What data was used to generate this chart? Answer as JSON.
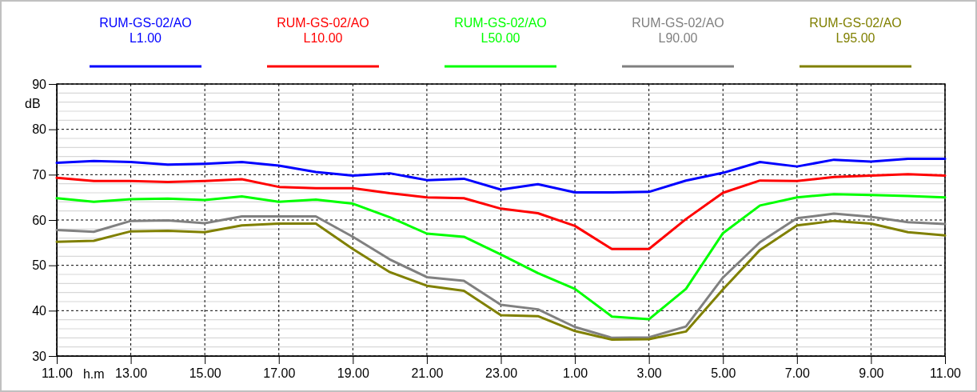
{
  "chart_data": {
    "type": "line",
    "xlabel": "h.m",
    "ylabel": "dB",
    "legend": "top",
    "grid": true,
    "line_style": "solid",
    "marker": "none",
    "categories": [
      "11.00",
      null,
      "13.00",
      null,
      "15.00",
      null,
      "17.00",
      null,
      "19.00",
      null,
      "21.00",
      null,
      "23.00",
      null,
      "1.00",
      null,
      "3.00",
      null,
      "5.00",
      null,
      "7.00",
      null,
      "9.00",
      null,
      "11.00"
    ],
    "ylim": [
      30,
      90
    ],
    "yticks": [
      30,
      {
        "value": 32,
        "label": null
      },
      {
        "value": 34,
        "label": null
      },
      {
        "value": 36,
        "label": null
      },
      {
        "value": 38,
        "label": null
      },
      40,
      {
        "value": 42,
        "label": null
      },
      {
        "value": 44,
        "label": null
      },
      {
        "value": 46,
        "label": null
      },
      {
        "value": 48,
        "label": null
      },
      50,
      {
        "value": 52,
        "label": null
      },
      {
        "value": 54,
        "label": null
      },
      {
        "value": 56,
        "label": null
      },
      {
        "value": 58,
        "label": null
      },
      60,
      {
        "value": 62,
        "label": null
      },
      {
        "value": 64,
        "label": null
      },
      {
        "value": 66,
        "label": null
      },
      {
        "value": 68,
        "label": null
      },
      70,
      {
        "value": 72,
        "label": null
      },
      {
        "value": 74,
        "label": null
      },
      {
        "value": 76,
        "label": null
      },
      {
        "value": 78,
        "label": null
      },
      80,
      {
        "value": 82,
        "label": null
      },
      {
        "value": 84,
        "label": null
      },
      {
        "value": 86,
        "label": null
      },
      {
        "value": 88,
        "label": null
      },
      90
    ],
    "series": [
      {
        "name": "RUM-GS-02/AO\nL1.00",
        "color": "#0000ff",
        "values": [
          72.6,
          73,
          72.8,
          72.2,
          72.4,
          72.8,
          72,
          70.6,
          69.8,
          70.3,
          68.8,
          69.1,
          66.7,
          67.9,
          66.1,
          66.1,
          66.2,
          68.7,
          70.4,
          72.8,
          71.8,
          73.3,
          72.9,
          73.5,
          73.5
        ]
      },
      {
        "name": "RUM-GS-02/AO\nL10.00",
        "color": "#ff0000",
        "values": [
          69.3,
          68.6,
          68.6,
          68.4,
          68.6,
          69,
          67.3,
          67,
          67,
          65.9,
          65,
          64.8,
          62.5,
          61.5,
          58.7,
          53.6,
          53.6,
          60.2,
          66,
          68.7,
          68.6,
          69.5,
          69.8,
          70.1,
          69.8
        ]
      },
      {
        "name": "RUM-GS-02/AO\nL50.00",
        "color": "#00ff00",
        "values": [
          64.8,
          64,
          64.6,
          64.7,
          64.4,
          65.2,
          64,
          64.5,
          63.6,
          60.6,
          57,
          56.3,
          52.4,
          48.3,
          44.8,
          38.7,
          38.1,
          44.8,
          57.1,
          63.2,
          65,
          65.7,
          65.5,
          65.3,
          65
        ]
      },
      {
        "name": "RUM-GS-02/AO\nL90.00",
        "color": "#808080",
        "values": [
          57.8,
          57.4,
          59.8,
          59.9,
          59.3,
          60.8,
          60.8,
          60.8,
          56.3,
          51.3,
          47.4,
          46.6,
          41.3,
          40.3,
          36.4,
          34,
          34.1,
          36.5,
          47.3,
          55.1,
          60.4,
          61.4,
          60.7,
          59.5,
          59.1
        ]
      },
      {
        "name": "RUM-GS-02/AO\nL95.00",
        "color": "#808000",
        "values": [
          55.2,
          55.4,
          57.5,
          57.6,
          57.3,
          58.8,
          59.2,
          59.2,
          53.6,
          48.5,
          45.5,
          44.4,
          39,
          38.8,
          35.5,
          33.6,
          33.7,
          35.4,
          44.7,
          53.4,
          58.8,
          59.8,
          59.2,
          57.3,
          56.6
        ]
      }
    ]
  }
}
